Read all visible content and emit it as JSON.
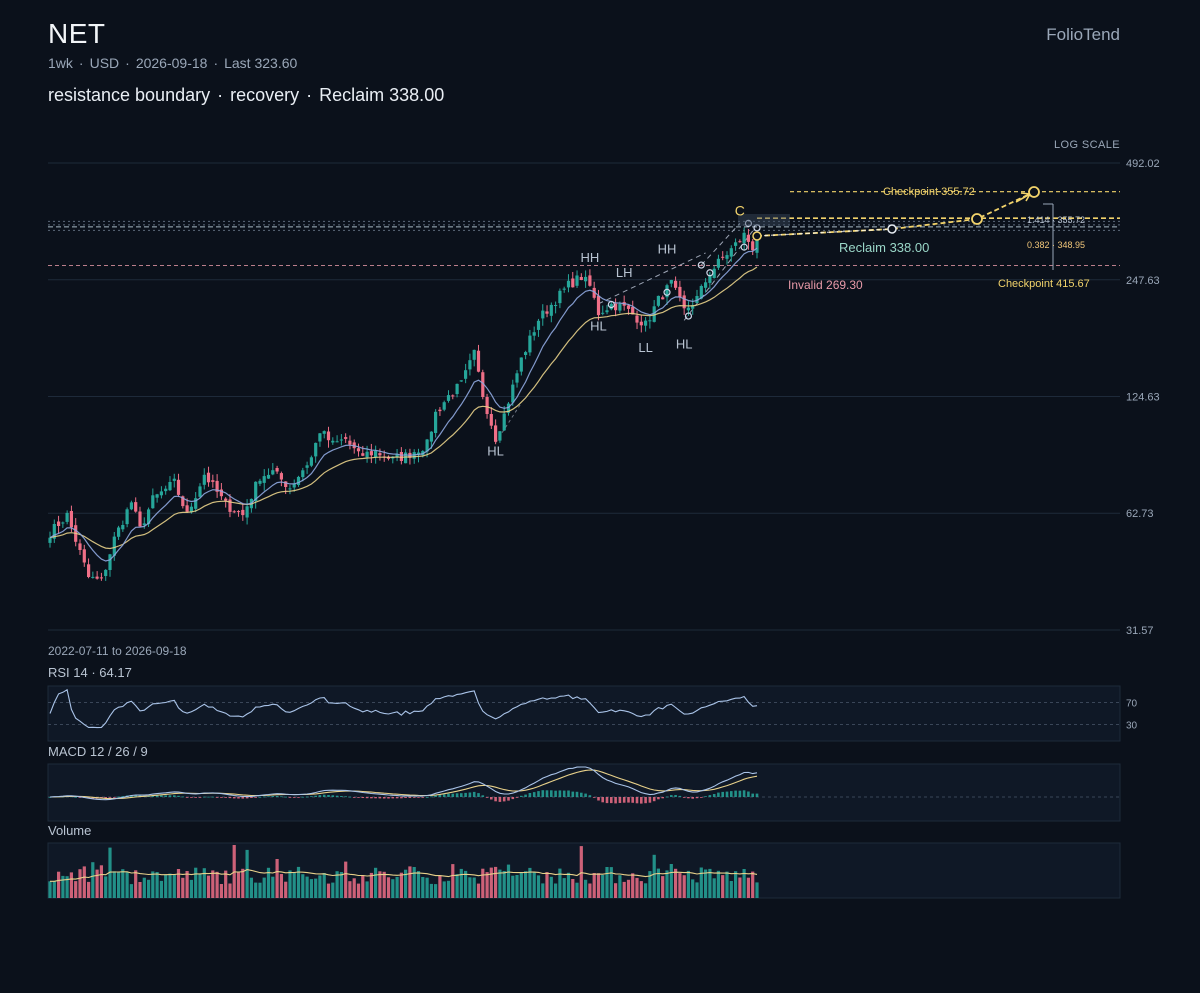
{
  "header": {
    "ticker": "NET",
    "interval": "1wk",
    "currency": "USD",
    "date": "2026-09-18",
    "last_label": "Last 323.60",
    "brand": "FolioTend",
    "headline_parts": [
      "resistance boundary",
      "recovery",
      "Reclaim 338.00"
    ]
  },
  "scale_label": "LOG SCALE",
  "range_label": "2022-07-11 to 2026-09-18",
  "panels": {
    "rsi_label": "RSI 14 · 64.17",
    "macd_label": "MACD 12 / 26 / 9",
    "volume_label": "Volume"
  },
  "colors": {
    "background": "#0b111b",
    "up": "#26a69a",
    "down": "#ef6f87",
    "ema_fast": "#8fa8e0",
    "ema_slow": "#e8d18a",
    "annotation_yellow": "#f2d36b",
    "reclaim_teal": "#9ad7c8",
    "invalid_pink": "#e89aa8"
  },
  "chart_data": {
    "type": "candlestick",
    "scale": "log",
    "period": "1wk",
    "start_date": "2022-07-11",
    "end_date": "2026-09-18",
    "y_ticks": [
      492.02,
      247.63,
      124.63,
      62.73,
      31.57
    ],
    "ylim": [
      31.57,
      492.02
    ],
    "last_price": 323.6,
    "anchors": [
      [
        0,
        56
      ],
      [
        4,
        62
      ],
      [
        9,
        43
      ],
      [
        12,
        42
      ],
      [
        15,
        54
      ],
      [
        19,
        67
      ],
      [
        21,
        57
      ],
      [
        24,
        68
      ],
      [
        29,
        75
      ],
      [
        32,
        62
      ],
      [
        36,
        79
      ],
      [
        41,
        66
      ],
      [
        45,
        62
      ],
      [
        49,
        78
      ],
      [
        52,
        80
      ],
      [
        56,
        73
      ],
      [
        61,
        87
      ],
      [
        63,
        102
      ],
      [
        66,
        94
      ],
      [
        69,
        97
      ],
      [
        72,
        88
      ],
      [
        76,
        90
      ],
      [
        80,
        86
      ],
      [
        83,
        88
      ],
      [
        88,
        94
      ],
      [
        90,
        113
      ],
      [
        93,
        125
      ],
      [
        96,
        134
      ],
      [
        99,
        160
      ],
      [
        101,
        126
      ],
      [
        104,
        98
      ],
      [
        106,
        112
      ],
      [
        110,
        155
      ],
      [
        114,
        196
      ],
      [
        118,
        220
      ],
      [
        121,
        240
      ],
      [
        124,
        252
      ],
      [
        126,
        238
      ],
      [
        128,
        204
      ],
      [
        131,
        214
      ],
      [
        134,
        210
      ],
      [
        137,
        198
      ],
      [
        139,
        190
      ],
      [
        142,
        220
      ],
      [
        145,
        242
      ],
      [
        148,
        206
      ],
      [
        151,
        222
      ],
      [
        154,
        258
      ],
      [
        157,
        282
      ],
      [
        159,
        296
      ],
      [
        162,
        322
      ],
      [
        164,
        300
      ],
      [
        165,
        323.6
      ]
    ],
    "levels": [
      {
        "label": "Reclaim 338.00",
        "value": 338.0
      },
      {
        "label": "Invalid 269.30",
        "value": 269.3
      },
      {
        "label": "Checkpoint 355.72",
        "value": 355.72
      },
      {
        "label": "Checkpoint 415.67",
        "value": 415.67
      }
    ],
    "fib_labels": [
      {
        "ratio": "1.414",
        "value": "355.72"
      },
      {
        "ratio": "0.382",
        "value": "348.95"
      }
    ],
    "swing_labels": [
      {
        "text": "HL",
        "bar": 104,
        "price": 98,
        "pos": "below"
      },
      {
        "text": "HL",
        "bar": 128,
        "price": 204,
        "pos": "below"
      },
      {
        "text": "HH",
        "bar": 126,
        "price": 262,
        "pos": "above"
      },
      {
        "text": "LH",
        "bar": 134,
        "price": 240,
        "pos": "above"
      },
      {
        "text": "LL",
        "bar": 139,
        "price": 180,
        "pos": "below"
      },
      {
        "text": "HH",
        "bar": 144,
        "price": 276,
        "pos": "above"
      },
      {
        "text": "HL",
        "bar": 148,
        "price": 184,
        "pos": "below"
      },
      {
        "text": "C",
        "bar": 161,
        "price": 345,
        "pos": "above"
      }
    ],
    "rsi": {
      "period": 14,
      "value": 64.17,
      "levels": [
        70,
        30
      ]
    },
    "macd": {
      "fast": 12,
      "slow": 26,
      "signal": 9
    },
    "volume": true
  }
}
